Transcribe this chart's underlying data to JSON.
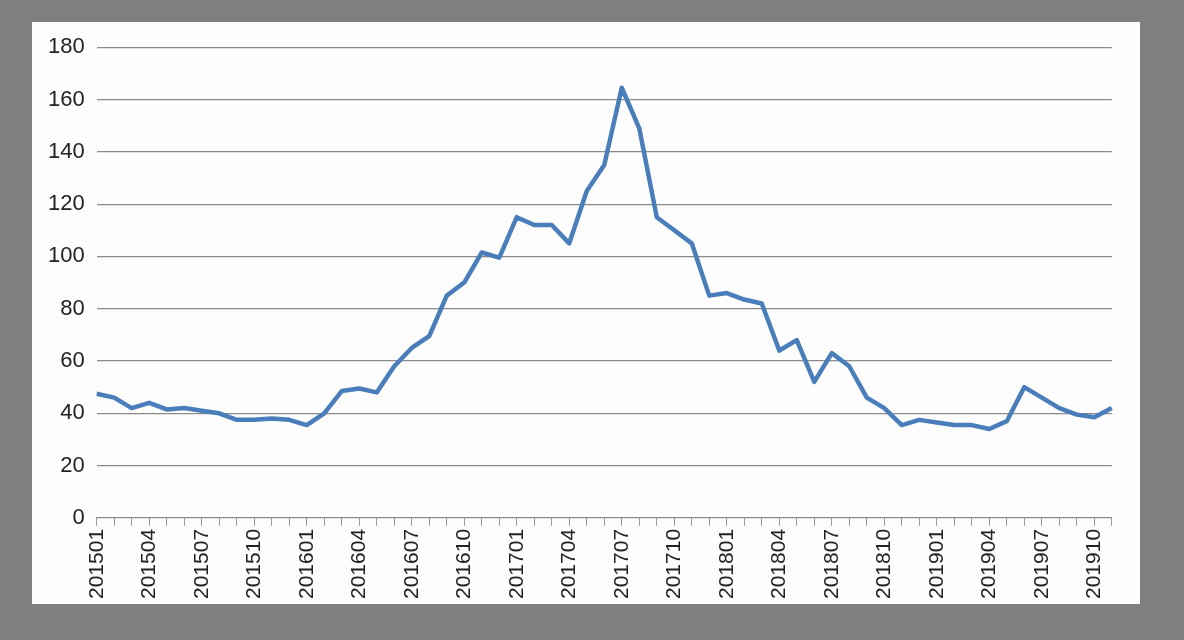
{
  "chart_data": {
    "type": "line",
    "categories": [
      "201501",
      null,
      null,
      "201504",
      null,
      null,
      "201507",
      null,
      null,
      "201510",
      null,
      null,
      "201601",
      null,
      null,
      "201604",
      null,
      null,
      "201607",
      null,
      null,
      "201610",
      null,
      null,
      "201701",
      null,
      null,
      "201704",
      null,
      null,
      "201707",
      null,
      null,
      "201710",
      null,
      null,
      "201801",
      null,
      null,
      "201804",
      null,
      null,
      "201807",
      null,
      null,
      "201810",
      null,
      null,
      "201901",
      null,
      null,
      "201904",
      null,
      null,
      "201907",
      null,
      null,
      "201910",
      null
    ],
    "series": [
      {
        "color": "#4a7ebb",
        "values": [
          47.5,
          46,
          42,
          44,
          41.5,
          42,
          41,
          40,
          37.5,
          37.5,
          38,
          37.5,
          35.5,
          40,
          48.5,
          49.5,
          48,
          58,
          65,
          69.5,
          85,
          90,
          101.5,
          99.5,
          115,
          112,
          112,
          105,
          125,
          135,
          164.5,
          149,
          115,
          110,
          105,
          85,
          86,
          83.5,
          82,
          64,
          68,
          52,
          63,
          58,
          46,
          42,
          35.5,
          37.5,
          36.5,
          35.5,
          35.5,
          34,
          37,
          50,
          46,
          42,
          39.5,
          38.5,
          42
        ]
      }
    ],
    "ylim": [
      0,
      180
    ],
    "yticks": [
      0,
      20,
      40,
      60,
      80,
      100,
      120,
      140,
      160,
      180
    ],
    "grid": "y",
    "legend": false,
    "marker": "none",
    "line_style": "solid"
  }
}
